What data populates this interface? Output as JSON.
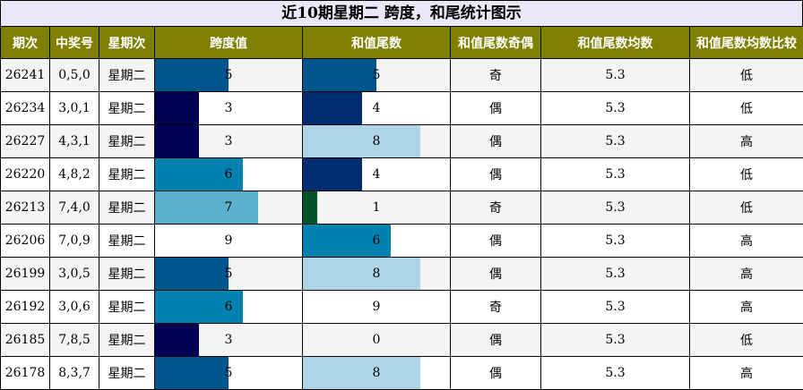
{
  "title": "近10期星期二 跨度，和尾统计图示",
  "headers": [
    "期次",
    "中奖号",
    "星期次",
    "跨度值",
    "和值尾数",
    "和值尾数奇偶",
    "和值尾数均数",
    "和值尾数均数比较"
  ],
  "colors": {
    "header_bg": "#7f7f00",
    "title_bg": "#e8e8f8",
    "bar_scale": {
      "0": "#ffffff",
      "1": "#005228",
      "3": "#000055",
      "4": "#002c74",
      "5": "#00558f",
      "6": "#0082af",
      "7": "#5cb0cc",
      "8": "#acd6e5",
      "9": "#ffffff"
    }
  },
  "scale_max": 10,
  "rows": [
    {
      "issue": "26241",
      "numbers": "0,5,0",
      "weekday": "星期二",
      "span": 5,
      "sum_tail": 5,
      "parity": "奇",
      "avg": "5.3",
      "compare": "低"
    },
    {
      "issue": "26234",
      "numbers": "3,0,1",
      "weekday": "星期二",
      "span": 3,
      "sum_tail": 4,
      "parity": "偶",
      "avg": "5.3",
      "compare": "低"
    },
    {
      "issue": "26227",
      "numbers": "4,3,1",
      "weekday": "星期二",
      "span": 3,
      "sum_tail": 8,
      "parity": "偶",
      "avg": "5.3",
      "compare": "高"
    },
    {
      "issue": "26220",
      "numbers": "4,8,2",
      "weekday": "星期二",
      "span": 6,
      "sum_tail": 4,
      "parity": "偶",
      "avg": "5.3",
      "compare": "低"
    },
    {
      "issue": "26213",
      "numbers": "7,4,0",
      "weekday": "星期二",
      "span": 7,
      "sum_tail": 1,
      "parity": "奇",
      "avg": "5.3",
      "compare": "低"
    },
    {
      "issue": "26206",
      "numbers": "7,0,9",
      "weekday": "星期二",
      "span": 9,
      "sum_tail": 6,
      "parity": "偶",
      "avg": "5.3",
      "compare": "高"
    },
    {
      "issue": "26199",
      "numbers": "3,0,5",
      "weekday": "星期二",
      "span": 5,
      "sum_tail": 8,
      "parity": "偶",
      "avg": "5.3",
      "compare": "高"
    },
    {
      "issue": "26192",
      "numbers": "3,0,6",
      "weekday": "星期二",
      "span": 6,
      "sum_tail": 9,
      "parity": "奇",
      "avg": "5.3",
      "compare": "高"
    },
    {
      "issue": "26185",
      "numbers": "7,8,5",
      "weekday": "星期二",
      "span": 3,
      "sum_tail": 0,
      "parity": "偶",
      "avg": "5.3",
      "compare": "低"
    },
    {
      "issue": "26178",
      "numbers": "8,3,7",
      "weekday": "星期二",
      "span": 5,
      "sum_tail": 8,
      "parity": "偶",
      "avg": "5.3",
      "compare": "高"
    }
  ]
}
